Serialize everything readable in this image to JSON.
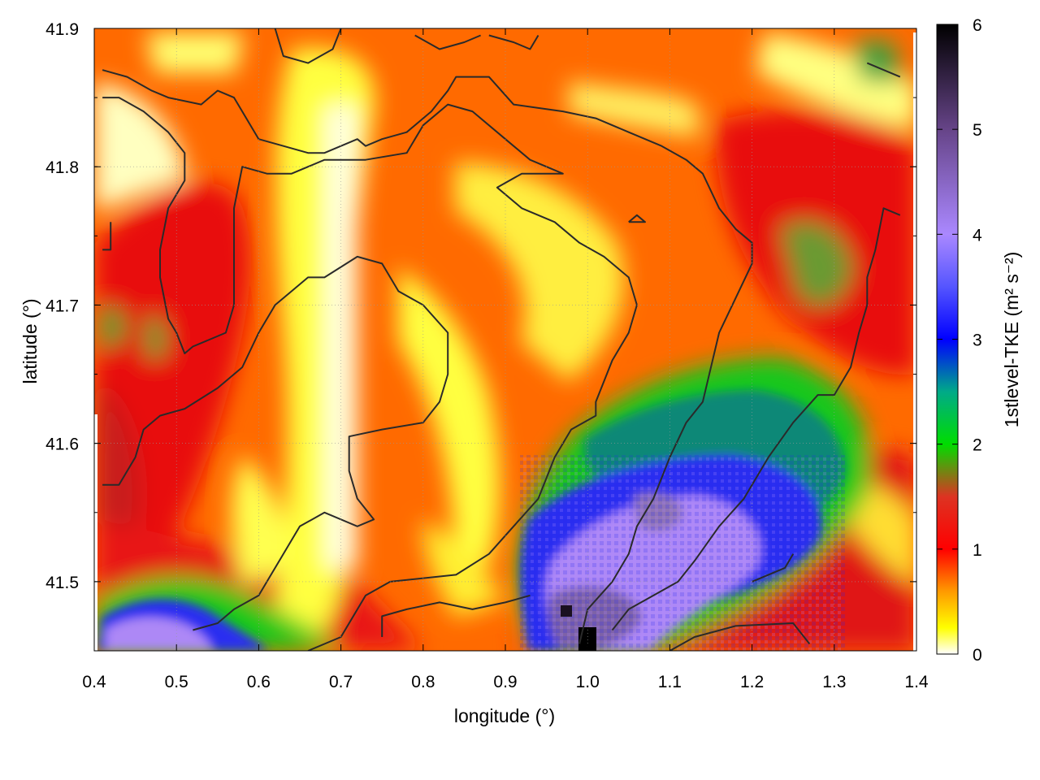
{
  "chart_data": {
    "type": "heatmap",
    "title": "",
    "xlabel": "longitude (°)",
    "ylabel": "latitude (°)",
    "xlim": [
      0.4,
      1.4
    ],
    "ylim": [
      41.45,
      41.9
    ],
    "x_ticks": [
      "0.4",
      "0.5",
      "0.6",
      "0.7",
      "0.8",
      "0.9",
      "1.0",
      "1.1",
      "1.2",
      "1.3",
      "1.4"
    ],
    "y_ticks": [
      "41.5",
      "41.6",
      "41.7",
      "41.8",
      "41.9"
    ],
    "grid": true,
    "colorbar": {
      "label": "1stlevel-TKE (m² s⁻²)",
      "range": [
        0,
        6
      ],
      "ticks": [
        "0",
        "1",
        "2",
        "3",
        "4",
        "5",
        "6"
      ],
      "stops": [
        {
          "value": 0.0,
          "color": "#ffffff"
        },
        {
          "value": 0.25,
          "color": "#ffff00"
        },
        {
          "value": 0.6,
          "color": "#ff9900"
        },
        {
          "value": 1.0,
          "color": "#ff0000"
        },
        {
          "value": 1.5,
          "color": "#dd3322"
        },
        {
          "value": 2.0,
          "color": "#00dd00"
        },
        {
          "value": 2.5,
          "color": "#00aa88"
        },
        {
          "value": 3.0,
          "color": "#0000ff"
        },
        {
          "value": 3.5,
          "color": "#5555ff"
        },
        {
          "value": 4.0,
          "color": "#aa88ff"
        },
        {
          "value": 5.0,
          "color": "#664488"
        },
        {
          "value": 6.0,
          "color": "#000000"
        }
      ]
    },
    "highlights": [
      {
        "name": "high-TKE patch south-east",
        "lon": 0.95,
        "lat": 41.53,
        "value": 3.6
      },
      {
        "name": "high-TKE patch south-west",
        "lon": 0.52,
        "lat": 41.48,
        "value": 3.8
      },
      {
        "name": "peak",
        "lon": 1.0,
        "lat": 41.46,
        "value": 6.0
      },
      {
        "name": "green cell north-east",
        "lon": 1.35,
        "lat": 41.88,
        "value": 2.5
      },
      {
        "name": "green patch east",
        "lon": 1.3,
        "lat": 41.7,
        "value": 1.8
      }
    ],
    "contours": [
      [
        [
          0.41,
          41.87
        ],
        [
          0.44,
          41.865
        ],
        [
          0.47,
          41.855
        ],
        [
          0.49,
          41.85
        ],
        [
          0.53,
          41.845
        ],
        [
          0.55,
          41.855
        ],
        [
          0.57,
          41.85
        ],
        [
          0.6,
          41.82
        ],
        [
          0.63,
          41.815
        ],
        [
          0.66,
          41.81
        ],
        [
          0.68,
          41.81
        ],
        [
          0.72,
          41.82
        ],
        [
          0.73,
          41.815
        ],
        [
          0.75,
          41.82
        ],
        [
          0.78,
          41.825
        ],
        [
          0.81,
          41.84
        ],
        [
          0.83,
          41.855
        ],
        [
          0.84,
          41.865
        ],
        [
          0.88,
          41.865
        ],
        [
          0.91,
          41.845
        ],
        [
          0.97,
          41.84
        ],
        [
          1.01,
          41.835
        ],
        [
          1.05,
          41.825
        ],
        [
          1.09,
          41.815
        ],
        [
          1.12,
          41.805
        ],
        [
          1.14,
          41.795
        ],
        [
          1.16,
          41.77
        ],
        [
          1.18,
          41.755
        ],
        [
          1.2,
          41.745
        ],
        [
          1.2,
          41.73
        ],
        [
          1.18,
          41.705
        ],
        [
          1.16,
          41.68
        ],
        [
          1.15,
          41.655
        ],
        [
          1.14,
          41.63
        ],
        [
          1.12,
          41.615
        ],
        [
          1.1,
          41.59
        ],
        [
          1.08,
          41.56
        ],
        [
          1.06,
          41.54
        ],
        [
          1.05,
          41.52
        ],
        [
          1.03,
          41.5
        ],
        [
          1.0,
          41.48
        ],
        [
          0.99,
          41.455
        ]
      ],
      [
        [
          0.41,
          41.85
        ],
        [
          0.43,
          41.85
        ],
        [
          0.46,
          41.84
        ],
        [
          0.49,
          41.825
        ],
        [
          0.51,
          41.81
        ],
        [
          0.51,
          41.79
        ],
        [
          0.49,
          41.77
        ],
        [
          0.48,
          41.74
        ],
        [
          0.48,
          41.72
        ],
        [
          0.49,
          41.69
        ],
        [
          0.5,
          41.68
        ],
        [
          0.51,
          41.665
        ],
        [
          0.52,
          41.67
        ],
        [
          0.54,
          41.675
        ],
        [
          0.56,
          41.68
        ],
        [
          0.57,
          41.7
        ],
        [
          0.57,
          41.73
        ],
        [
          0.57,
          41.77
        ],
        [
          0.58,
          41.8
        ],
        [
          0.61,
          41.795
        ],
        [
          0.64,
          41.795
        ],
        [
          0.68,
          41.805
        ],
        [
          0.73,
          41.805
        ],
        [
          0.78,
          41.81
        ],
        [
          0.8,
          41.83
        ],
        [
          0.83,
          41.845
        ],
        [
          0.86,
          41.84
        ],
        [
          0.9,
          41.82
        ],
        [
          0.93,
          41.805
        ],
        [
          0.97,
          41.795
        ],
        [
          0.92,
          41.795
        ],
        [
          0.89,
          41.785
        ],
        [
          0.92,
          41.77
        ],
        [
          0.96,
          41.76
        ],
        [
          0.99,
          41.745
        ],
        [
          1.02,
          41.735
        ],
        [
          1.05,
          41.72
        ],
        [
          1.06,
          41.7
        ],
        [
          1.05,
          41.68
        ],
        [
          1.03,
          41.66
        ],
        [
          1.01,
          41.63
        ],
        [
          1.01,
          41.62
        ],
        [
          0.98,
          41.61
        ],
        [
          0.96,
          41.59
        ],
        [
          0.94,
          41.56
        ],
        [
          0.91,
          41.54
        ],
        [
          0.88,
          41.52
        ],
        [
          0.84,
          41.505
        ],
        [
          0.76,
          41.5
        ],
        [
          0.73,
          41.49
        ],
        [
          0.7,
          41.46
        ],
        [
          0.66,
          41.45
        ]
      ],
      [
        [
          0.41,
          41.57
        ],
        [
          0.43,
          41.57
        ],
        [
          0.45,
          41.59
        ],
        [
          0.46,
          41.61
        ],
        [
          0.48,
          41.62
        ],
        [
          0.51,
          41.625
        ],
        [
          0.55,
          41.64
        ],
        [
          0.58,
          41.655
        ],
        [
          0.6,
          41.68
        ],
        [
          0.62,
          41.7
        ],
        [
          0.64,
          41.71
        ],
        [
          0.66,
          41.72
        ],
        [
          0.68,
          41.72
        ],
        [
          0.72,
          41.735
        ],
        [
          0.75,
          41.73
        ],
        [
          0.77,
          41.71
        ],
        [
          0.8,
          41.7
        ],
        [
          0.83,
          41.68
        ],
        [
          0.83,
          41.65
        ],
        [
          0.82,
          41.63
        ],
        [
          0.8,
          41.615
        ],
        [
          0.75,
          41.61
        ],
        [
          0.71,
          41.605
        ],
        [
          0.71,
          41.58
        ],
        [
          0.72,
          41.56
        ],
        [
          0.74,
          41.545
        ],
        [
          0.72,
          41.54
        ],
        [
          0.68,
          41.55
        ],
        [
          0.65,
          41.54
        ],
        [
          0.63,
          41.52
        ],
        [
          0.61,
          41.5
        ],
        [
          0.6,
          41.49
        ],
        [
          0.57,
          41.48
        ],
        [
          0.55,
          41.47
        ],
        [
          0.52,
          41.465
        ]
      ],
      [
        [
          0.75,
          41.46
        ],
        [
          0.75,
          41.475
        ],
        [
          0.78,
          41.48
        ],
        [
          0.82,
          41.485
        ],
        [
          0.86,
          41.48
        ],
        [
          0.9,
          41.485
        ],
        [
          0.93,
          41.49
        ]
      ],
      [
        [
          0.42,
          41.76
        ],
        [
          0.42,
          41.74
        ],
        [
          0.41,
          41.74
        ]
      ],
      [
        [
          1.05,
          41.76
        ],
        [
          1.07,
          41.76
        ],
        [
          1.06,
          41.765
        ],
        [
          1.05,
          41.76
        ]
      ],
      [
        [
          1.38,
          41.765
        ],
        [
          1.36,
          41.77
        ],
        [
          1.35,
          41.74
        ],
        [
          1.34,
          41.72
        ],
        [
          1.34,
          41.7
        ],
        [
          1.33,
          41.68
        ],
        [
          1.32,
          41.655
        ],
        [
          1.3,
          41.635
        ],
        [
          1.28,
          41.635
        ],
        [
          1.25,
          41.615
        ],
        [
          1.22,
          41.59
        ],
        [
          1.19,
          41.56
        ],
        [
          1.16,
          41.54
        ],
        [
          1.13,
          41.515
        ],
        [
          1.11,
          41.5
        ],
        [
          1.08,
          41.49
        ],
        [
          1.05,
          41.48
        ],
        [
          1.03,
          41.465
        ]
      ],
      [
        [
          1.1,
          41.45
        ],
        [
          1.13,
          41.46
        ],
        [
          1.18,
          41.468
        ],
        [
          1.25,
          41.47
        ],
        [
          1.27,
          41.455
        ]
      ],
      [
        [
          1.2,
          41.5
        ],
        [
          1.22,
          41.505
        ],
        [
          1.24,
          41.51
        ],
        [
          1.25,
          41.52
        ]
      ],
      [
        [
          1.34,
          41.875
        ],
        [
          1.36,
          41.87
        ],
        [
          1.38,
          41.865
        ]
      ],
      [
        [
          0.62,
          41.9
        ],
        [
          0.63,
          41.88
        ],
        [
          0.66,
          41.875
        ],
        [
          0.69,
          41.885
        ],
        [
          0.7,
          41.9
        ]
      ],
      [
        [
          0.79,
          41.895
        ],
        [
          0.82,
          41.885
        ],
        [
          0.85,
          41.89
        ],
        [
          0.87,
          41.895
        ]
      ],
      [
        [
          0.88,
          41.895
        ],
        [
          0.91,
          41.89
        ],
        [
          0.93,
          41.885
        ],
        [
          0.94,
          41.895
        ]
      ]
    ]
  }
}
